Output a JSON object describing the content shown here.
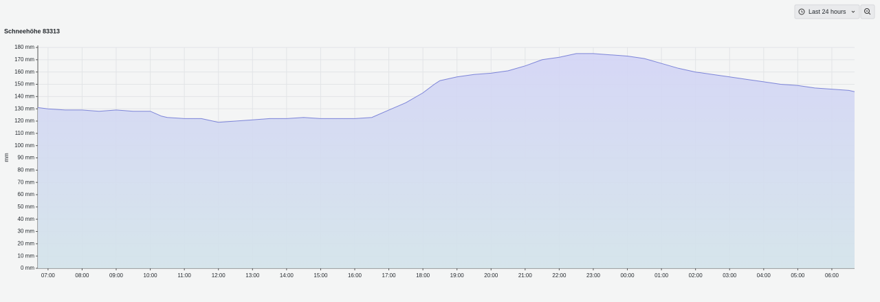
{
  "toolbar": {
    "time_range": "Last 24 hours"
  },
  "chart_data": {
    "type": "line",
    "title": "Schneehöhe 83313",
    "y_label": "mm",
    "x": [
      "06:42",
      "07:00",
      "07:30",
      "08:00",
      "08:30",
      "09:00",
      "09:30",
      "10:00",
      "10:20",
      "10:30",
      "11:00",
      "11:30",
      "12:00",
      "12:30",
      "13:00",
      "13:30",
      "14:00",
      "14:30",
      "15:00",
      "15:30",
      "16:00",
      "16:30",
      "17:00",
      "17:30",
      "18:00",
      "18:20",
      "18:30",
      "19:00",
      "19:30",
      "20:00",
      "20:30",
      "21:00",
      "21:30",
      "22:00",
      "22:30",
      "23:00",
      "23:30",
      "00:00",
      "00:30",
      "01:00",
      "01:30",
      "02:00",
      "02:30",
      "03:00",
      "03:30",
      "04:00",
      "04:30",
      "05:00",
      "05:30",
      "06:00",
      "06:30",
      "06:40"
    ],
    "series": [
      {
        "color": "#7c84d8",
        "values": [
          131,
          130,
          129,
          129,
          128,
          129,
          128,
          128,
          124,
          123,
          122,
          122,
          119,
          120,
          121,
          122,
          122,
          123,
          122,
          122,
          122,
          123,
          129,
          135,
          143,
          150,
          153,
          156,
          158,
          159,
          161,
          165,
          170,
          172,
          175,
          175,
          174,
          173,
          171,
          167,
          163,
          160,
          158,
          156,
          154,
          152,
          150,
          149,
          147,
          146,
          145,
          144
        ]
      }
    ],
    "xlim": [
      "06:42",
      "06:40"
    ],
    "xticks": [
      "07:00",
      "08:00",
      "09:00",
      "10:00",
      "11:00",
      "12:00",
      "13:00",
      "14:00",
      "15:00",
      "16:00",
      "17:00",
      "18:00",
      "19:00",
      "20:00",
      "21:00",
      "22:00",
      "23:00",
      "00:00",
      "01:00",
      "02:00",
      "03:00",
      "04:00",
      "05:00",
      "06:00"
    ],
    "ylim": [
      0,
      180
    ],
    "yticks": [
      {
        "value": 0,
        "label": "0 mm"
      },
      {
        "value": 10,
        "label": "10 mm"
      },
      {
        "value": 20,
        "label": "20 mm"
      },
      {
        "value": 30,
        "label": "30 mm"
      },
      {
        "value": 40,
        "label": "40 mm"
      },
      {
        "value": 50,
        "label": "50 mm"
      },
      {
        "value": 60,
        "label": "60 mm"
      },
      {
        "value": 70,
        "label": "70 mm"
      },
      {
        "value": 80,
        "label": "80 mm"
      },
      {
        "value": 90,
        "label": "90 mm"
      },
      {
        "value": 100,
        "label": "100 mm"
      },
      {
        "value": 110,
        "label": "110 mm"
      },
      {
        "value": 120,
        "label": "120 mm"
      },
      {
        "value": 130,
        "label": "130 mm"
      },
      {
        "value": 140,
        "label": "140 mm"
      },
      {
        "value": 150,
        "label": "150 mm"
      },
      {
        "value": 160,
        "label": "160 mm"
      },
      {
        "value": 170,
        "label": "170 mm"
      },
      {
        "value": 180,
        "label": "180 mm"
      }
    ],
    "grid": true
  }
}
